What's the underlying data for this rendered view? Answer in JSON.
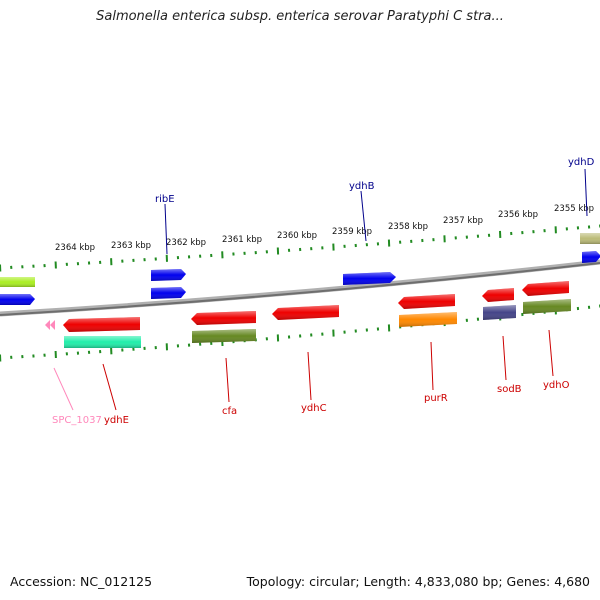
{
  "title": "Salmonella enterica subsp. enterica serovar Paratyphi C stra...",
  "footer": {
    "accession": "Accession: NC_012125",
    "topology": "Topology: circular; Length: 4,833,080 bp; Genes: 4,680"
  },
  "colors": {
    "backbone": "#8a8a8a",
    "tick": "#228b22",
    "label_forward": "#00008b",
    "label_reverse": "#cc0000",
    "label_pseudo": "#ff88bb"
  },
  "scale_ticks": [
    {
      "kbp": 2364,
      "label": "2364 kbp"
    },
    {
      "kbp": 2363,
      "label": "2363 kbp"
    },
    {
      "kbp": 2362,
      "label": "2362 kbp"
    },
    {
      "kbp": 2361,
      "label": "2361 kbp"
    },
    {
      "kbp": 2360,
      "label": "2360 kbp"
    },
    {
      "kbp": 2359,
      "label": "2359 kbp"
    },
    {
      "kbp": 2358,
      "label": "2358 kbp"
    },
    {
      "kbp": 2357,
      "label": "2357 kbp"
    },
    {
      "kbp": 2356,
      "label": "2356 kbp"
    },
    {
      "kbp": 2355,
      "label": "2355 kbp"
    }
  ],
  "genes": [
    {
      "name": "ribE",
      "strand": "forward",
      "color": "#0000ee"
    },
    {
      "name": "ydhB",
      "strand": "forward",
      "color": "#0000ee"
    },
    {
      "name": "ydhD",
      "strand": "forward",
      "color": "#0000ee"
    },
    {
      "name": "SPC_1037",
      "strand": "reverse",
      "color": "#ff88bb"
    },
    {
      "name": "ydhE",
      "strand": "reverse",
      "color": "#ee0000"
    },
    {
      "name": "cfa",
      "strand": "reverse",
      "color": "#ee0000"
    },
    {
      "name": "ydhC",
      "strand": "reverse",
      "color": "#ee0000"
    },
    {
      "name": "purR",
      "strand": "reverse",
      "color": "#ee0000"
    },
    {
      "name": "sodB",
      "strand": "reverse",
      "color": "#ee0000"
    },
    {
      "name": "ydhO",
      "strand": "reverse",
      "color": "#ee0000"
    }
  ]
}
